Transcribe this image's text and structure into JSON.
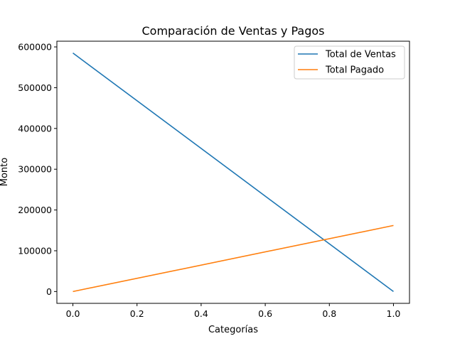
{
  "chart_data": {
    "type": "line",
    "title": "Comparación de Ventas y Pagos",
    "xlabel": "Categorías",
    "ylabel": "Monto",
    "xlim": [
      -0.05,
      1.05
    ],
    "ylim": [
      -29000,
      614000
    ],
    "xticks": [
      0.0,
      0.2,
      0.4,
      0.6,
      0.8,
      1.0
    ],
    "xtick_labels": [
      "0.0",
      "0.2",
      "0.4",
      "0.6",
      "0.8",
      "1.0"
    ],
    "yticks": [
      0,
      100000,
      200000,
      300000,
      400000,
      500000,
      600000
    ],
    "ytick_labels": [
      "0",
      "100000",
      "200000",
      "300000",
      "400000",
      "500000",
      "600000"
    ],
    "grid": false,
    "legend_position": "top-right",
    "series": [
      {
        "name": "Total de Ventas",
        "color": "#1f77b4",
        "x": [
          0,
          1
        ],
        "y": [
          585000,
          0
        ]
      },
      {
        "name": "Total Pagado",
        "color": "#ff7f0e",
        "x": [
          0,
          1
        ],
        "y": [
          0,
          162000
        ]
      }
    ]
  }
}
